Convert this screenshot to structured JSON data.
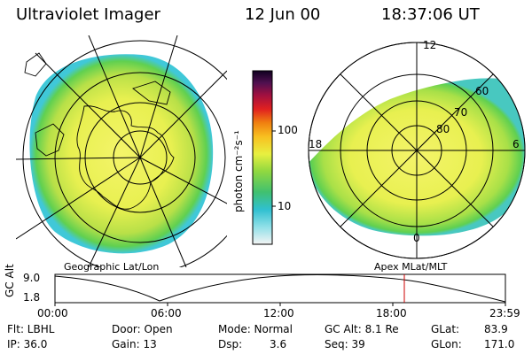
{
  "header": {
    "title": "Ultraviolet Imager",
    "date": "12 Jun 00",
    "time": "18:37:06 UT"
  },
  "colorbar": {
    "unit_label": "photon cm⁻²s⁻¹",
    "ticks": [
      "100",
      "10"
    ]
  },
  "polar_plot": {
    "lat_labels": [
      "80",
      "70",
      "60"
    ],
    "mlt_labels": [
      "12",
      "18",
      "6",
      "0"
    ]
  },
  "panel_labels": {
    "left": "Geographic Lat/Lon",
    "right": "Apex MLat/MLT"
  },
  "altitude_plot": {
    "ylabel": "GC Alt",
    "y_ticks": [
      "9.0",
      "1.8"
    ],
    "x_ticks": [
      "00:00",
      "06:00",
      "12:00",
      "18:00",
      "23:59"
    ],
    "marker_time": "18:37"
  },
  "footer": {
    "row1": {
      "filter": "Flt: LBHL",
      "door": "Door: Open",
      "mode": "Mode: Normal",
      "gc_alt": "GC Alt: 8.1 Re",
      "glat_label": "GLat:",
      "glat_value": "83.9"
    },
    "row2": {
      "ip": "IP: 36.0",
      "gain": "Gain: 13",
      "dsp_label": "Dsp:",
      "dsp_value": "3.6",
      "seq": "Seq: 39",
      "glon_label": "GLon:",
      "glon_value": "171.0"
    }
  },
  "colors": {
    "accent_red": "#cc0000",
    "auroral_yellow": "#e8f050",
    "auroral_green": "#60d050",
    "auroral_cyan": "#40c8d8"
  }
}
